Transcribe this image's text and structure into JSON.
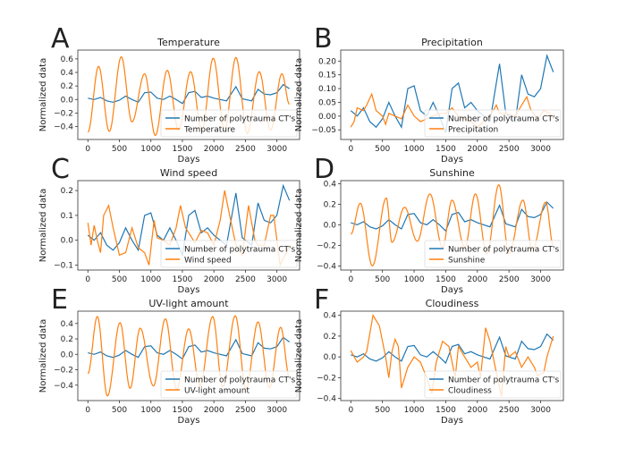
{
  "chart_data": [
    {
      "panel_letter": "A",
      "type": "line",
      "title": "Temperature",
      "xlabel": "Days",
      "ylabel": "Normalized data",
      "xlim": [
        -160,
        3360
      ],
      "ylim": [
        -0.59,
        0.73
      ],
      "xticks": [
        0,
        500,
        1000,
        1500,
        2000,
        2500,
        3000
      ],
      "yticks": [
        -0.4,
        -0.2,
        0.0,
        0.2,
        0.4,
        0.6
      ],
      "ytick_labels": [
        "−0.4",
        "−0.2",
        "0.0",
        "0.2",
        "0.4",
        "0.6"
      ],
      "legend": "lower-right",
      "grid": false,
      "series": [
        {
          "name": "Number of polytrauma CT's",
          "color": "#1f77b4",
          "ref": "polytrauma"
        },
        {
          "name": "Temperature",
          "color": "#ff7f0e",
          "smooth": true,
          "x": [
            0,
            170,
            340,
            530,
            700,
            900,
            1070,
            1260,
            1440,
            1630,
            1810,
            1990,
            2170,
            2350,
            2530,
            2720,
            2900,
            3080,
            3200
          ],
          "y": [
            -0.48,
            0.49,
            -0.47,
            0.63,
            -0.33,
            0.38,
            -0.53,
            0.43,
            -0.45,
            0.41,
            -0.45,
            0.61,
            -0.45,
            0.62,
            -0.5,
            0.41,
            -0.45,
            0.38,
            -0.07
          ]
        }
      ]
    },
    {
      "panel_letter": "B",
      "type": "line",
      "title": "Precipitation",
      "xlabel": "Days",
      "ylabel": "Normalized data",
      "xlim": [
        -160,
        3360
      ],
      "ylim": [
        -0.085,
        0.24
      ],
      "xticks": [
        0,
        500,
        1000,
        1500,
        2000,
        2500,
        3000
      ],
      "yticks": [
        -0.05,
        0.0,
        0.05,
        0.1,
        0.15,
        0.2
      ],
      "ytick_labels": [
        "−0.05",
        "0.00",
        "0.05",
        "0.10",
        "0.15",
        "0.20"
      ],
      "legend": "lower-right",
      "grid": false,
      "series": [
        {
          "name": "Number of polytrauma CT's",
          "color": "#1f77b4",
          "ref": "polytrauma"
        },
        {
          "name": "Precipitation",
          "color": "#ff7f0e",
          "x": [
            0,
            50,
            100,
            200,
            250,
            330,
            400,
            500,
            550,
            600,
            700,
            800,
            900,
            1000,
            1100,
            1200,
            1300,
            1400,
            1500,
            1600,
            1700,
            1800,
            1900,
            2000,
            2100,
            2200,
            2300,
            2350,
            2450,
            2600,
            2700,
            2780,
            2850,
            2950,
            3050,
            3150,
            3200
          ],
          "y": [
            -0.04,
            -0.02,
            0.03,
            0.02,
            0.04,
            0.08,
            0.02,
            0.0,
            -0.03,
            0.01,
            0.0,
            -0.01,
            0.04,
            0.0,
            -0.02,
            -0.01,
            0.0,
            0.01,
            0.01,
            0.03,
            0.0,
            -0.01,
            -0.02,
            -0.04,
            -0.02,
            0.0,
            0.04,
            0.01,
            0.01,
            0.0,
            0.04,
            0.07,
            0.02,
            -0.01,
            0.02,
            0.01,
            -0.01
          ]
        }
      ]
    },
    {
      "panel_letter": "C",
      "type": "line",
      "title": "Wind speed",
      "xlabel": "Days",
      "ylabel": "Normalized data",
      "xlim": [
        -160,
        3360
      ],
      "ylim": [
        -0.12,
        0.24
      ],
      "xticks": [
        0,
        500,
        1000,
        1500,
        2000,
        2500,
        3000
      ],
      "yticks": [
        -0.1,
        0.0,
        0.1,
        0.2
      ],
      "ytick_labels": [
        "−0.1",
        "0.0",
        "0.1",
        "0.2"
      ],
      "legend": "lower-right",
      "grid": false,
      "series": [
        {
          "name": "Number of polytrauma CT's",
          "color": "#1f77b4",
          "ref": "polytrauma"
        },
        {
          "name": "Wind speed",
          "color": "#ff7f0e",
          "x": [
            0,
            50,
            100,
            150,
            200,
            250,
            330,
            400,
            500,
            600,
            700,
            800,
            900,
            970,
            1050,
            1100,
            1200,
            1300,
            1400,
            1470,
            1550,
            1700,
            1800,
            1900,
            2000,
            2100,
            2170,
            2250,
            2350,
            2450,
            2550,
            2650,
            2700,
            2800,
            2900,
            2950,
            3050,
            3150,
            3200
          ],
          "y": [
            0.07,
            -0.02,
            0.06,
            0.0,
            -0.05,
            0.1,
            0.14,
            0.05,
            -0.06,
            -0.05,
            0.05,
            -0.03,
            -0.05,
            -0.1,
            0.08,
            0.01,
            0.0,
            -0.02,
            0.05,
            0.14,
            0.05,
            -0.01,
            0.04,
            0.03,
            -0.02,
            0.08,
            0.2,
            0.1,
            -0.02,
            -0.06,
            0.14,
            0.0,
            -0.02,
            -0.02,
            0.1,
            0.1,
            -0.1,
            -0.05,
            -0.02
          ]
        }
      ]
    },
    {
      "panel_letter": "D",
      "type": "line",
      "title": "Sunshine",
      "xlabel": "Days",
      "ylabel": "Normalized data",
      "xlim": [
        -160,
        3360
      ],
      "ylim": [
        -0.44,
        0.43
      ],
      "xticks": [
        0,
        500,
        1000,
        1500,
        2000,
        2500,
        3000
      ],
      "yticks": [
        -0.4,
        -0.2,
        0.0,
        0.2,
        0.4
      ],
      "ytick_labels": [
        "−0.4",
        "−0.2",
        "0.0",
        "0.2",
        "0.4"
      ],
      "legend": "lower-right",
      "grid": false,
      "series": [
        {
          "name": "Number of polytrauma CT's",
          "color": "#1f77b4",
          "ref": "polytrauma"
        },
        {
          "name": "Sunshine",
          "color": "#ff7f0e",
          "smooth": true,
          "x": [
            0,
            150,
            340,
            560,
            650,
            850,
            1050,
            1250,
            1450,
            1600,
            1800,
            1970,
            2150,
            2340,
            2500,
            2720,
            2870,
            3080,
            3200
          ],
          "y": [
            -0.09,
            0.21,
            -0.4,
            0.26,
            -0.17,
            0.17,
            -0.16,
            0.3,
            -0.22,
            0.24,
            -0.22,
            0.3,
            -0.28,
            0.39,
            -0.28,
            0.24,
            -0.25,
            0.22,
            -0.2
          ]
        }
      ]
    },
    {
      "panel_letter": "E",
      "type": "line",
      "title": "UV-light amount",
      "xlabel": "Days",
      "ylabel": "Normalized data",
      "xlim": [
        -160,
        3360
      ],
      "ylim": [
        -0.6,
        0.56
      ],
      "xticks": [
        0,
        500,
        1000,
        1500,
        2000,
        2500,
        3000
      ],
      "yticks": [
        -0.4,
        -0.2,
        0.0,
        0.2,
        0.4
      ],
      "ytick_labels": [
        "−0.4",
        "−0.2",
        "0.0",
        "0.2",
        "0.4"
      ],
      "legend": "lower-right",
      "grid": false,
      "series": [
        {
          "name": "Number of polytrauma CT's",
          "color": "#1f77b4",
          "ref": "polytrauma"
        },
        {
          "name": "UV-light amount",
          "color": "#ff7f0e",
          "smooth": true,
          "x": [
            0,
            150,
            310,
            510,
            670,
            830,
            1040,
            1230,
            1410,
            1600,
            1780,
            1980,
            2140,
            2340,
            2510,
            2700,
            2880,
            3060,
            3200
          ],
          "y": [
            -0.25,
            0.49,
            -0.54,
            0.41,
            -0.44,
            0.34,
            -0.41,
            0.46,
            -0.45,
            0.33,
            -0.4,
            0.49,
            -0.42,
            0.5,
            -0.45,
            0.42,
            -0.43,
            0.35,
            -0.3
          ]
        }
      ]
    },
    {
      "panel_letter": "F",
      "type": "line",
      "title": "Cloudiness",
      "xlabel": "Days",
      "ylabel": "Normalized data",
      "xlim": [
        -160,
        3360
      ],
      "ylim": [
        -0.42,
        0.44
      ],
      "xticks": [
        0,
        500,
        1000,
        1500,
        2000,
        2500,
        3000
      ],
      "yticks": [
        -0.4,
        -0.2,
        0.0,
        0.2,
        0.4
      ],
      "ytick_labels": [
        "−0.4",
        "−0.2",
        "0.0",
        "0.2",
        "0.4"
      ],
      "legend": "lower-right",
      "grid": false,
      "series": [
        {
          "name": "Number of polytrauma CT's",
          "color": "#1f77b4",
          "ref": "polytrauma"
        },
        {
          "name": "Cloudiness",
          "color": "#ff7f0e",
          "x": [
            0,
            100,
            200,
            250,
            350,
            450,
            550,
            600,
            650,
            700,
            750,
            800,
            900,
            1000,
            1100,
            1200,
            1280,
            1350,
            1450,
            1550,
            1650,
            1700,
            1800,
            1900,
            2000,
            2050,
            2130,
            2200,
            2300,
            2380,
            2450,
            2500,
            2600,
            2700,
            2800,
            2900,
            2950,
            3050,
            3100,
            3150,
            3200
          ],
          "y": [
            0.06,
            -0.05,
            0.0,
            0.05,
            0.4,
            0.3,
            0.0,
            -0.2,
            0.05,
            0.17,
            0.1,
            -0.3,
            -0.1,
            0.0,
            -0.05,
            -0.2,
            -0.35,
            -0.05,
            0.15,
            0.1,
            -0.2,
            0.1,
            0.0,
            -0.1,
            -0.05,
            -0.2,
            0.28,
            0.15,
            -0.15,
            -0.38,
            0.1,
            0.0,
            0.05,
            -0.1,
            0.0,
            -0.1,
            -0.18,
            -0.15,
            0.0,
            0.1,
            0.2
          ]
        }
      ]
    }
  ],
  "polytrauma": {
    "name": "Number of polytrauma CT's",
    "x": [
      0,
      100,
      200,
      300,
      400,
      500,
      600,
      700,
      800,
      900,
      1000,
      1100,
      1200,
      1300,
      1400,
      1500,
      1600,
      1700,
      1800,
      1900,
      2000,
      2100,
      2200,
      2300,
      2350,
      2450,
      2600,
      2700,
      2800,
      2900,
      3000,
      3100,
      3200
    ],
    "y": [
      0.02,
      0.0,
      0.03,
      -0.02,
      -0.04,
      -0.01,
      0.05,
      0.0,
      -0.04,
      0.1,
      0.11,
      0.02,
      0.0,
      0.05,
      0.0,
      -0.06,
      0.1,
      0.12,
      0.03,
      0.05,
      0.02,
      0.0,
      -0.02,
      0.12,
      0.19,
      0.01,
      -0.02,
      0.15,
      0.08,
      0.07,
      0.1,
      0.22,
      0.16
    ]
  }
}
